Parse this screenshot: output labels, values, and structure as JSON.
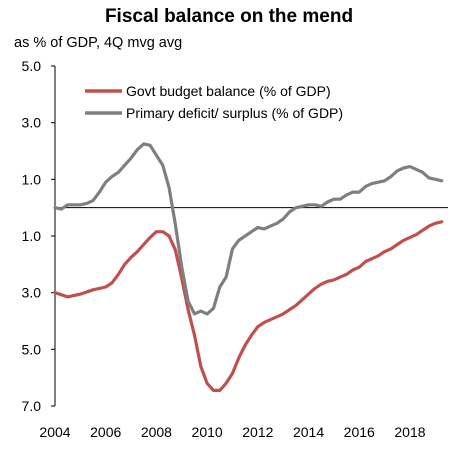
{
  "chart_data": {
    "type": "line",
    "title": "Fiscal balance on the mend",
    "subtitle": "as % of GDP, 4Q mvg avg",
    "xlabel": "",
    "ylabel": "",
    "x_range": [
      2004,
      2019.5
    ],
    "y_range": [
      -7.0,
      5.0
    ],
    "y_ticks": [
      {
        "value": 5.0,
        "label": "5.0",
        "color": "#000000"
      },
      {
        "value": 3.0,
        "label": "3.0",
        "color": "#000000"
      },
      {
        "value": 1.0,
        "label": "1.0",
        "color": "#000000"
      },
      {
        "value": -1.0,
        "label": "1.0",
        "color": "#c0504d"
      },
      {
        "value": -3.0,
        "label": "3.0",
        "color": "#000000"
      },
      {
        "value": -5.0,
        "label": "5.0",
        "color": "#c0504d"
      },
      {
        "value": -7.0,
        "label": "7.0",
        "color": "#000000"
      }
    ],
    "x_ticks": [
      "2004",
      "2006",
      "2008",
      "2010",
      "2012",
      "2014",
      "2016",
      "2018"
    ],
    "x_tick_values": [
      2004,
      2006,
      2008,
      2010,
      2012,
      2014,
      2016,
      2018
    ],
    "legend_position": "top-right",
    "series": [
      {
        "name": "Govt budget balance (% of GDP)",
        "color": "#c0504d",
        "points": [
          [
            2004.0,
            -3.0
          ],
          [
            2004.5,
            -3.15
          ],
          [
            2005.0,
            -3.05
          ],
          [
            2005.5,
            -2.9
          ],
          [
            2006.0,
            -2.8
          ],
          [
            2006.25,
            -2.65
          ],
          [
            2006.5,
            -2.35
          ],
          [
            2006.75,
            -2.0
          ],
          [
            2007.0,
            -1.75
          ],
          [
            2007.25,
            -1.55
          ],
          [
            2007.5,
            -1.3
          ],
          [
            2007.75,
            -1.05
          ],
          [
            2008.0,
            -0.85
          ],
          [
            2008.25,
            -0.85
          ],
          [
            2008.5,
            -1.0
          ],
          [
            2008.75,
            -1.5
          ],
          [
            2009.0,
            -2.5
          ],
          [
            2009.25,
            -3.6
          ],
          [
            2009.5,
            -4.5
          ],
          [
            2009.75,
            -5.6
          ],
          [
            2010.0,
            -6.2
          ],
          [
            2010.25,
            -6.45
          ],
          [
            2010.5,
            -6.45
          ],
          [
            2010.75,
            -6.2
          ],
          [
            2011.0,
            -5.85
          ],
          [
            2011.25,
            -5.3
          ],
          [
            2011.5,
            -4.85
          ],
          [
            2011.75,
            -4.5
          ],
          [
            2012.0,
            -4.2
          ],
          [
            2012.25,
            -4.05
          ],
          [
            2012.5,
            -3.95
          ],
          [
            2012.75,
            -3.85
          ],
          [
            2013.0,
            -3.75
          ],
          [
            2013.25,
            -3.6
          ],
          [
            2013.5,
            -3.45
          ],
          [
            2013.75,
            -3.25
          ],
          [
            2014.0,
            -3.05
          ],
          [
            2014.25,
            -2.85
          ],
          [
            2014.5,
            -2.7
          ],
          [
            2014.75,
            -2.6
          ],
          [
            2015.0,
            -2.55
          ],
          [
            2015.25,
            -2.45
          ],
          [
            2015.5,
            -2.35
          ],
          [
            2015.75,
            -2.2
          ],
          [
            2016.0,
            -2.1
          ],
          [
            2016.25,
            -1.9
          ],
          [
            2016.5,
            -1.8
          ],
          [
            2016.75,
            -1.7
          ],
          [
            2017.0,
            -1.55
          ],
          [
            2017.25,
            -1.45
          ],
          [
            2017.5,
            -1.3
          ],
          [
            2017.75,
            -1.15
          ],
          [
            2018.0,
            -1.05
          ],
          [
            2018.25,
            -0.95
          ],
          [
            2018.5,
            -0.8
          ],
          [
            2018.75,
            -0.65
          ],
          [
            2019.0,
            -0.55
          ],
          [
            2019.25,
            -0.5
          ]
        ]
      },
      {
        "name": "Primary deficit/ surplus (% of GDP)",
        "color": "#7f7f7f",
        "points": [
          [
            2004.0,
            0.0
          ],
          [
            2004.25,
            -0.05
          ],
          [
            2004.5,
            0.1
          ],
          [
            2004.75,
            0.1
          ],
          [
            2005.0,
            0.1
          ],
          [
            2005.25,
            0.15
          ],
          [
            2005.5,
            0.25
          ],
          [
            2005.75,
            0.55
          ],
          [
            2006.0,
            0.9
          ],
          [
            2006.25,
            1.1
          ],
          [
            2006.5,
            1.25
          ],
          [
            2006.75,
            1.5
          ],
          [
            2007.0,
            1.75
          ],
          [
            2007.25,
            2.05
          ],
          [
            2007.5,
            2.25
          ],
          [
            2007.75,
            2.2
          ],
          [
            2008.0,
            1.85
          ],
          [
            2008.25,
            1.5
          ],
          [
            2008.5,
            0.7
          ],
          [
            2008.75,
            -0.6
          ],
          [
            2009.0,
            -2.1
          ],
          [
            2009.25,
            -3.3
          ],
          [
            2009.5,
            -3.75
          ],
          [
            2009.75,
            -3.65
          ],
          [
            2010.0,
            -3.75
          ],
          [
            2010.25,
            -3.55
          ],
          [
            2010.5,
            -2.8
          ],
          [
            2010.75,
            -2.45
          ],
          [
            2011.0,
            -1.45
          ],
          [
            2011.25,
            -1.15
          ],
          [
            2011.5,
            -1.0
          ],
          [
            2011.75,
            -0.85
          ],
          [
            2012.0,
            -0.7
          ],
          [
            2012.25,
            -0.75
          ],
          [
            2012.5,
            -0.65
          ],
          [
            2012.75,
            -0.55
          ],
          [
            2013.0,
            -0.4
          ],
          [
            2013.25,
            -0.15
          ],
          [
            2013.5,
            0.0
          ],
          [
            2013.75,
            0.05
          ],
          [
            2014.0,
            0.1
          ],
          [
            2014.25,
            0.1
          ],
          [
            2014.5,
            0.05
          ],
          [
            2014.75,
            0.2
          ],
          [
            2015.0,
            0.3
          ],
          [
            2015.25,
            0.3
          ],
          [
            2015.5,
            0.45
          ],
          [
            2015.75,
            0.55
          ],
          [
            2016.0,
            0.55
          ],
          [
            2016.25,
            0.75
          ],
          [
            2016.5,
            0.85
          ],
          [
            2016.75,
            0.9
          ],
          [
            2017.0,
            0.95
          ],
          [
            2017.25,
            1.1
          ],
          [
            2017.5,
            1.3
          ],
          [
            2017.75,
            1.4
          ],
          [
            2018.0,
            1.45
          ],
          [
            2018.25,
            1.35
          ],
          [
            2018.5,
            1.25
          ],
          [
            2018.75,
            1.05
          ],
          [
            2019.0,
            1.0
          ],
          [
            2019.25,
            0.95
          ]
        ]
      }
    ]
  }
}
